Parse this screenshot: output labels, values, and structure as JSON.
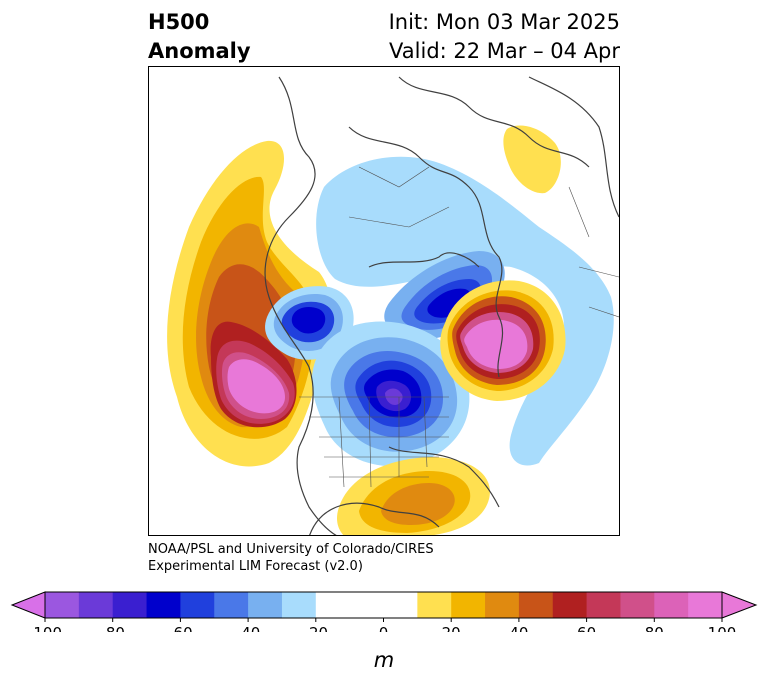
{
  "title": {
    "left_line1": "H500",
    "left_line2": "Anomaly",
    "right_line1": "Init: Mon 03 Mar 2025",
    "right_line2": "Valid: 22 Mar – 04 Apr"
  },
  "credit": {
    "line1": "NOAA/PSL and University of Colorado/CIRES",
    "line2": "Experimental LIM Forecast (v2.0)"
  },
  "colorbar": {
    "unit": "m",
    "ticks": [
      "-100",
      "-80",
      "-60",
      "-40",
      "-20",
      "0",
      "20",
      "40",
      "60",
      "80",
      "100"
    ],
    "levels": [
      -100,
      -90,
      -80,
      -70,
      -60,
      -50,
      -40,
      -30,
      -20,
      -10,
      10,
      20,
      30,
      40,
      50,
      60,
      70,
      80,
      90,
      100
    ],
    "colors": [
      "#9b57e0",
      "#6b3ad8",
      "#3a1fd0",
      "#0000cc",
      "#2040dd",
      "#4a78e8",
      "#78b0f0",
      "#a8dcfc",
      "#ffffff",
      "#ffffff",
      "#ffe050",
      "#f2b500",
      "#e08a10",
      "#c85418",
      "#b02020",
      "#c43858",
      "#d0508a",
      "#dc62b8",
      "#e878d8"
    ],
    "under_color": "#d870e8",
    "over_color": "#e878d8"
  },
  "anomaly_centers": [
    {
      "name": "eastern-pacific-ridge",
      "sign": "positive",
      "peak_m": 100
    },
    {
      "name": "greenland-ridge",
      "sign": "positive",
      "peak_m": 80
    },
    {
      "name": "north-atlantic-ridge",
      "sign": "positive",
      "peak_m": 100
    },
    {
      "name": "eastern-north-america-trough",
      "sign": "negative",
      "peak_m": -90
    },
    {
      "name": "hudson-bay-labrador-trough",
      "sign": "negative",
      "peak_m": -70
    },
    {
      "name": "alaska-trough",
      "sign": "negative",
      "peak_m": -60
    },
    {
      "name": "gulf-of-mexico-ridge",
      "sign": "positive",
      "peak_m": 40
    }
  ]
}
